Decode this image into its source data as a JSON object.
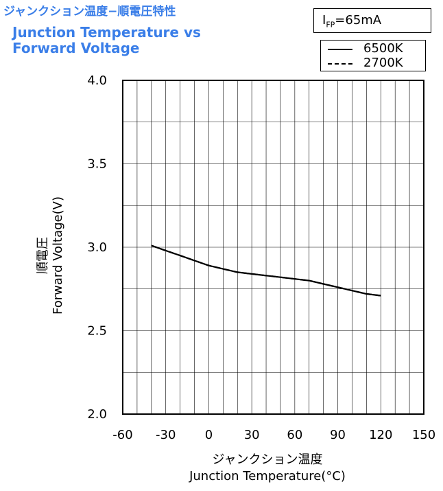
{
  "title": {
    "jp": "ジャンクション温度−順電圧特性",
    "en_line1": "Junction Temperature vs",
    "en_line2": "Forward Voltage"
  },
  "condition": {
    "prefix": "I",
    "sub": "FP",
    "suffix": "=65mA"
  },
  "legend": [
    {
      "label": "6500K",
      "style": "solid"
    },
    {
      "label": "2700K",
      "style": "dashed"
    }
  ],
  "colors": {
    "title": "#3a7ee8",
    "line": "#000000",
    "grid": "#000000"
  },
  "chart_data": {
    "type": "line",
    "title": "Junction Temperature vs Forward Voltage",
    "xlabel_jp": "ジャンクション温度",
    "xlabel": "Junction Temperature(°C)",
    "ylabel_jp": "順電圧",
    "ylabel": "Forward Voltage(V)",
    "xlim": [
      -60,
      150
    ],
    "ylim": [
      2.0,
      4.0
    ],
    "x_ticks": [
      "-60",
      "-30",
      "0",
      "30",
      "60",
      "90",
      "120",
      "150"
    ],
    "y_ticks": [
      "2.0",
      "2.5",
      "3.0",
      "3.5",
      "4.0"
    ],
    "grid": true,
    "legend_position": "top-right",
    "series": [
      {
        "name": "6500K",
        "style": "solid",
        "x": [
          -40,
          -30,
          -20,
          -10,
          0,
          10,
          20,
          30,
          40,
          50,
          60,
          70,
          80,
          90,
          100,
          110,
          120
        ],
        "y": [
          3.01,
          2.98,
          2.95,
          2.92,
          2.89,
          2.87,
          2.85,
          2.84,
          2.83,
          2.82,
          2.81,
          2.8,
          2.78,
          2.76,
          2.74,
          2.72,
          2.71
        ]
      },
      {
        "name": "2700K",
        "style": "dashed",
        "x": [
          -40,
          -30,
          -20,
          -10,
          0,
          10,
          20,
          30,
          40,
          50,
          60,
          70,
          80,
          90,
          100,
          110,
          120
        ],
        "y": [
          3.01,
          2.98,
          2.95,
          2.92,
          2.89,
          2.87,
          2.85,
          2.84,
          2.83,
          2.82,
          2.81,
          2.8,
          2.78,
          2.76,
          2.74,
          2.72,
          2.71
        ]
      }
    ]
  }
}
